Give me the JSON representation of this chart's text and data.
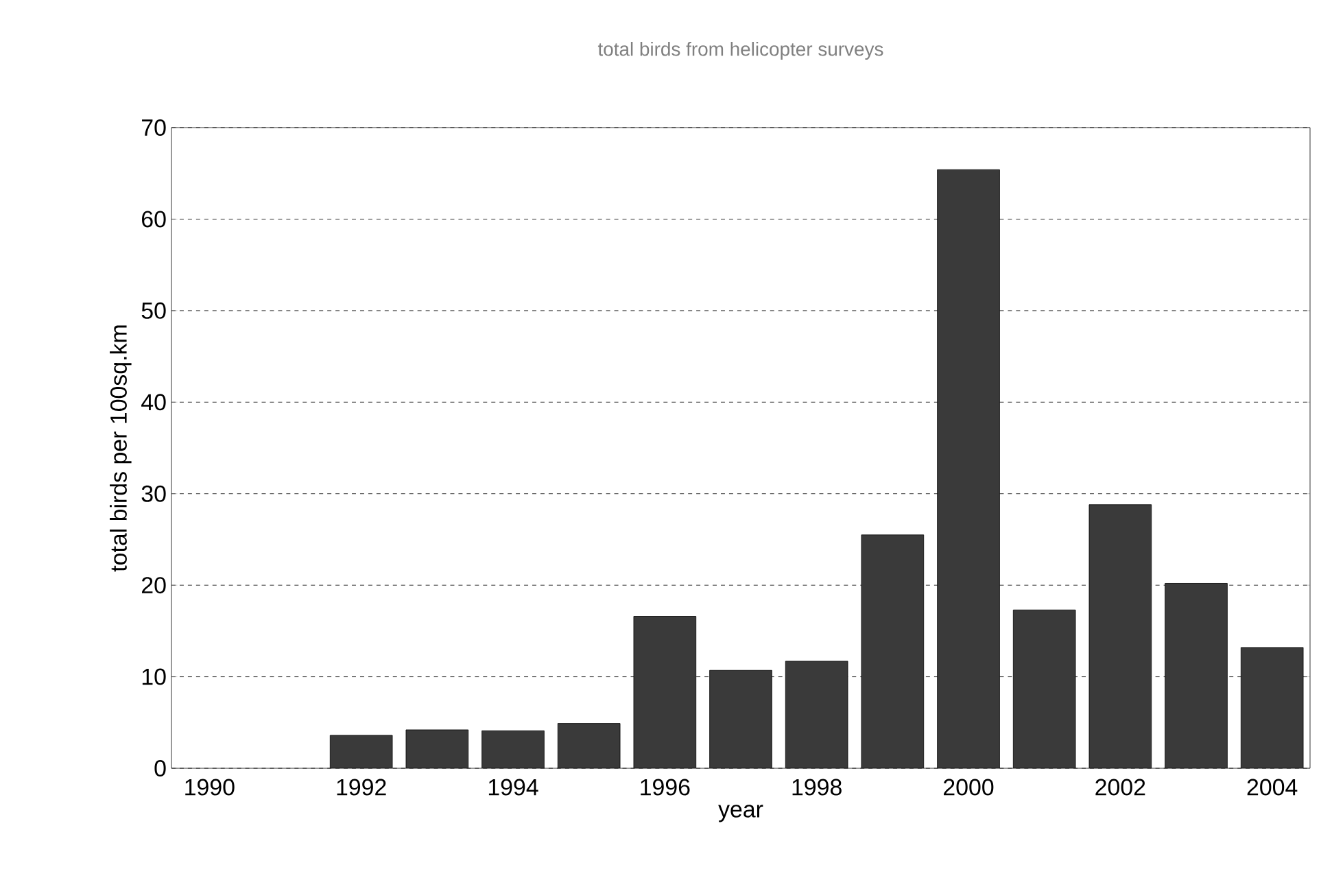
{
  "chart_data": {
    "type": "bar",
    "title": "total birds from helicopter surveys",
    "xlabel": "year",
    "ylabel": "total birds per 100sq.km",
    "categories": [
      "1990",
      null,
      "1992",
      null,
      "1994",
      null,
      "1996",
      null,
      "1998",
      null,
      "2000",
      null,
      "2002",
      null,
      "2004"
    ],
    "values": [
      null,
      null,
      3.6,
      4.2,
      4.1,
      4.9,
      16.6,
      10.7,
      11.7,
      25.5,
      65.4,
      17.3,
      28.8,
      20.2,
      13.2
    ],
    "color": "#3a3a3a",
    "ylim": [
      0,
      70
    ],
    "yticks": [
      0,
      10,
      20,
      30,
      40,
      50,
      60,
      70
    ],
    "grid": "y"
  }
}
